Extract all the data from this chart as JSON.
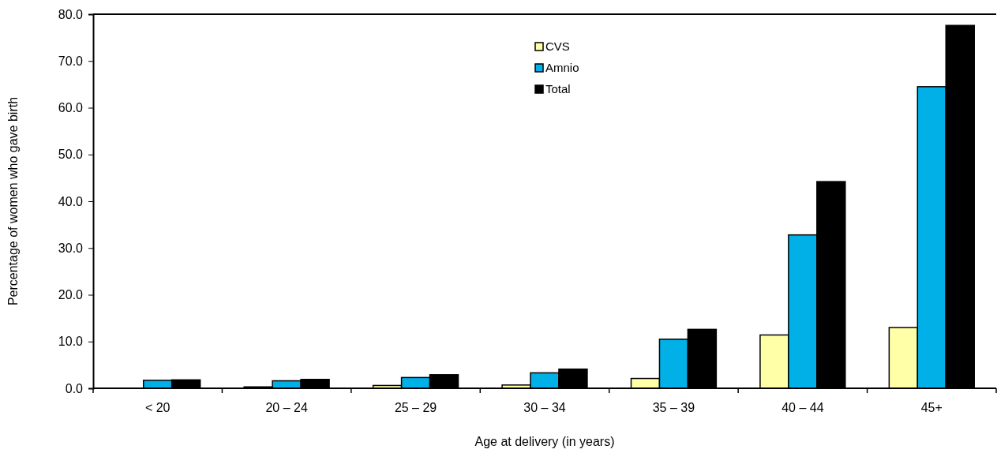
{
  "chart_data": {
    "type": "bar",
    "xlabel": "Age at delivery (in years)",
    "ylabel": "Percentage of women who gave birth",
    "categories": [
      "< 20",
      "20 – 24",
      "25 – 29",
      "30 – 34",
      "35 – 39",
      "40 – 44",
      "45+"
    ],
    "series": [
      {
        "name": "CVS",
        "color": "#ffffa8",
        "values": [
          0,
          0.3,
          0.6,
          0.7,
          2.1,
          11.4,
          13.0
        ]
      },
      {
        "name": "Amnio",
        "color": "#00b0e6",
        "values": [
          1.7,
          1.6,
          2.3,
          3.3,
          10.5,
          32.8,
          64.5
        ]
      },
      {
        "name": "Total",
        "color": "#000000",
        "values": [
          1.8,
          1.9,
          2.9,
          4.1,
          12.6,
          44.2,
          77.6
        ]
      }
    ],
    "ylim": [
      0,
      80
    ],
    "yticks": [
      {
        "value": 0,
        "label": "0.0"
      },
      {
        "value": 10,
        "label": "10.0"
      },
      {
        "value": 20,
        "label": "20.0"
      },
      {
        "value": 30,
        "label": "30.0"
      },
      {
        "value": 40,
        "label": "40.0"
      },
      {
        "value": 50,
        "label": "50.0"
      },
      {
        "value": 60,
        "label": "60.0"
      },
      {
        "value": 70,
        "label": "70.0"
      },
      {
        "value": 80,
        "label": "80.0"
      }
    ],
    "grid": false,
    "legend": "top"
  }
}
